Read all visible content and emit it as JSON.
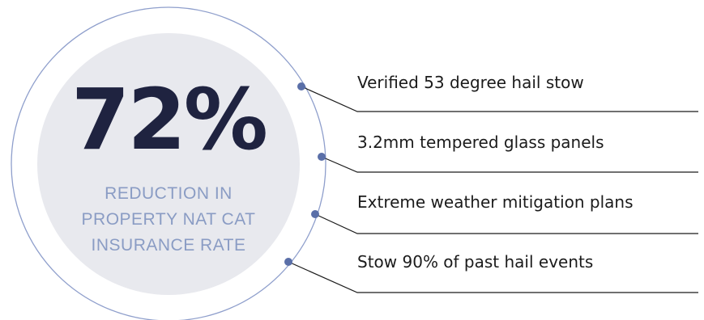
{
  "stat": {
    "value": "72%",
    "caption_lines": [
      "REDUCTION IN",
      "PROPERTY NAT CAT",
      "INSURANCE RATE"
    ]
  },
  "items": [
    {
      "label": "Verified 53 degree hail stow"
    },
    {
      "label": "3.2mm tempered glass panels"
    },
    {
      "label": "Extreme weather mitigation plans"
    },
    {
      "label": "Stow 90% of past hail events"
    }
  ],
  "colors": {
    "stat_text": "#1f2340",
    "caption_text": "#8a9cc4",
    "inner_circle": "#e8e9ee",
    "outer_ring": "#8f9fcc",
    "dot": "#5a6fa8",
    "connector_line": "#1b1b1b"
  }
}
